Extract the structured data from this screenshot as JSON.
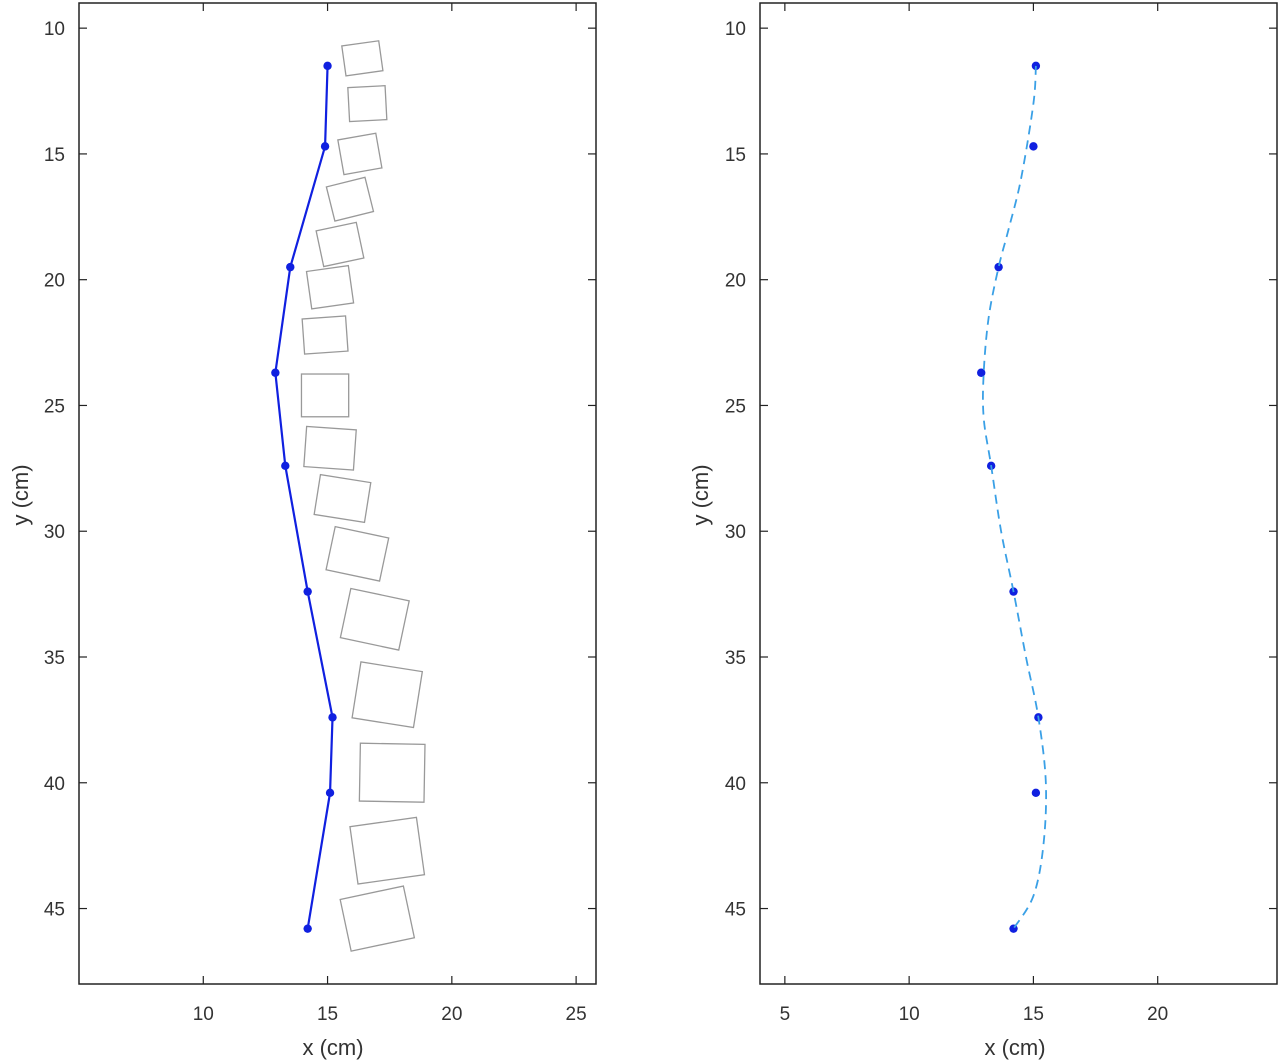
{
  "chart_data": [
    {
      "type": "line",
      "panel": "left",
      "xlabel": "x (cm)",
      "ylabel": "y (cm)",
      "xlim": [
        5,
        25.8
      ],
      "ylim": [
        48,
        9
      ],
      "y_axis": "reversed",
      "xticks": [
        10,
        15,
        20,
        25
      ],
      "yticks": [
        10,
        15,
        20,
        25,
        30,
        35,
        40,
        45
      ],
      "grid": false,
      "legend": "none",
      "series": [
        {
          "style": "solid line with point markers",
          "color": "#1020e0",
          "x": [
            15.0,
            14.9,
            13.5,
            12.9,
            13.3,
            14.2,
            15.2,
            15.1,
            14.2
          ],
          "y": [
            11.5,
            14.7,
            19.5,
            23.7,
            27.4,
            32.4,
            37.4,
            40.4,
            45.8
          ]
        }
      ],
      "vertebra_outlines": {
        "color": "#999999",
        "centers": [
          {
            "x": 16.4,
            "y": 11.2,
            "angle": -8
          },
          {
            "x": 16.6,
            "y": 13.0,
            "angle": -3
          },
          {
            "x": 16.3,
            "y": 15.0,
            "angle": -10
          },
          {
            "x": 15.9,
            "y": 16.8,
            "angle": -14
          },
          {
            "x": 15.5,
            "y": 18.6,
            "angle": -12
          },
          {
            "x": 15.1,
            "y": 20.3,
            "angle": -8
          },
          {
            "x": 14.9,
            "y": 22.2,
            "angle": -4
          },
          {
            "x": 14.9,
            "y": 24.6,
            "angle": 0
          },
          {
            "x": 15.1,
            "y": 26.7,
            "angle": 4
          },
          {
            "x": 15.6,
            "y": 28.7,
            "angle": 9
          },
          {
            "x": 16.2,
            "y": 30.9,
            "angle": 12
          },
          {
            "x": 16.9,
            "y": 33.5,
            "angle": 12
          },
          {
            "x": 17.4,
            "y": 36.5,
            "angle": 9
          },
          {
            "x": 17.6,
            "y": 39.6,
            "angle": 1
          },
          {
            "x": 17.4,
            "y": 42.7,
            "angle": -8
          },
          {
            "x": 17.0,
            "y": 45.4,
            "angle": -12
          }
        ],
        "widths": [
          1.5,
          1.5,
          1.55,
          1.6,
          1.65,
          1.7,
          1.75,
          1.9,
          2.0,
          2.05,
          2.2,
          2.4,
          2.5,
          2.6,
          2.7,
          2.6
        ],
        "heights": [
          1.2,
          1.35,
          1.4,
          1.4,
          1.45,
          1.5,
          1.4,
          1.7,
          1.6,
          1.6,
          1.75,
          2.0,
          2.25,
          2.3,
          2.3,
          2.1
        ]
      }
    },
    {
      "type": "line",
      "panel": "right",
      "xlabel": "x (cm)",
      "ylabel": "y (cm)",
      "xlim": [
        4,
        24.8
      ],
      "ylim": [
        48,
        9
      ],
      "y_axis": "reversed",
      "xticks": [
        5,
        10,
        15,
        20
      ],
      "yticks": [
        10,
        15,
        20,
        25,
        30,
        35,
        40,
        45
      ],
      "grid": false,
      "legend": "none",
      "series": [
        {
          "style": "markers only",
          "color": "#1020e0",
          "x": [
            15.1,
            15.0,
            13.6,
            12.9,
            13.3,
            14.2,
            15.2,
            15.1,
            14.2
          ],
          "y": [
            11.5,
            14.7,
            19.5,
            23.7,
            27.4,
            32.4,
            37.4,
            40.4,
            45.8
          ]
        },
        {
          "style": "dashed smooth fit",
          "color": "#3aa0e6",
          "x": [
            15.1,
            15.0,
            14.5,
            14.0,
            13.6,
            13.2,
            13.0,
            13.0,
            13.3,
            13.7,
            14.2,
            14.7,
            15.2,
            15.5,
            15.4,
            15.0,
            14.2
          ],
          "y": [
            11.5,
            13.0,
            16.0,
            18.0,
            19.5,
            21.5,
            23.7,
            25.5,
            27.4,
            30.0,
            32.4,
            35.0,
            37.4,
            40.0,
            42.5,
            44.5,
            45.8
          ]
        }
      ]
    }
  ]
}
